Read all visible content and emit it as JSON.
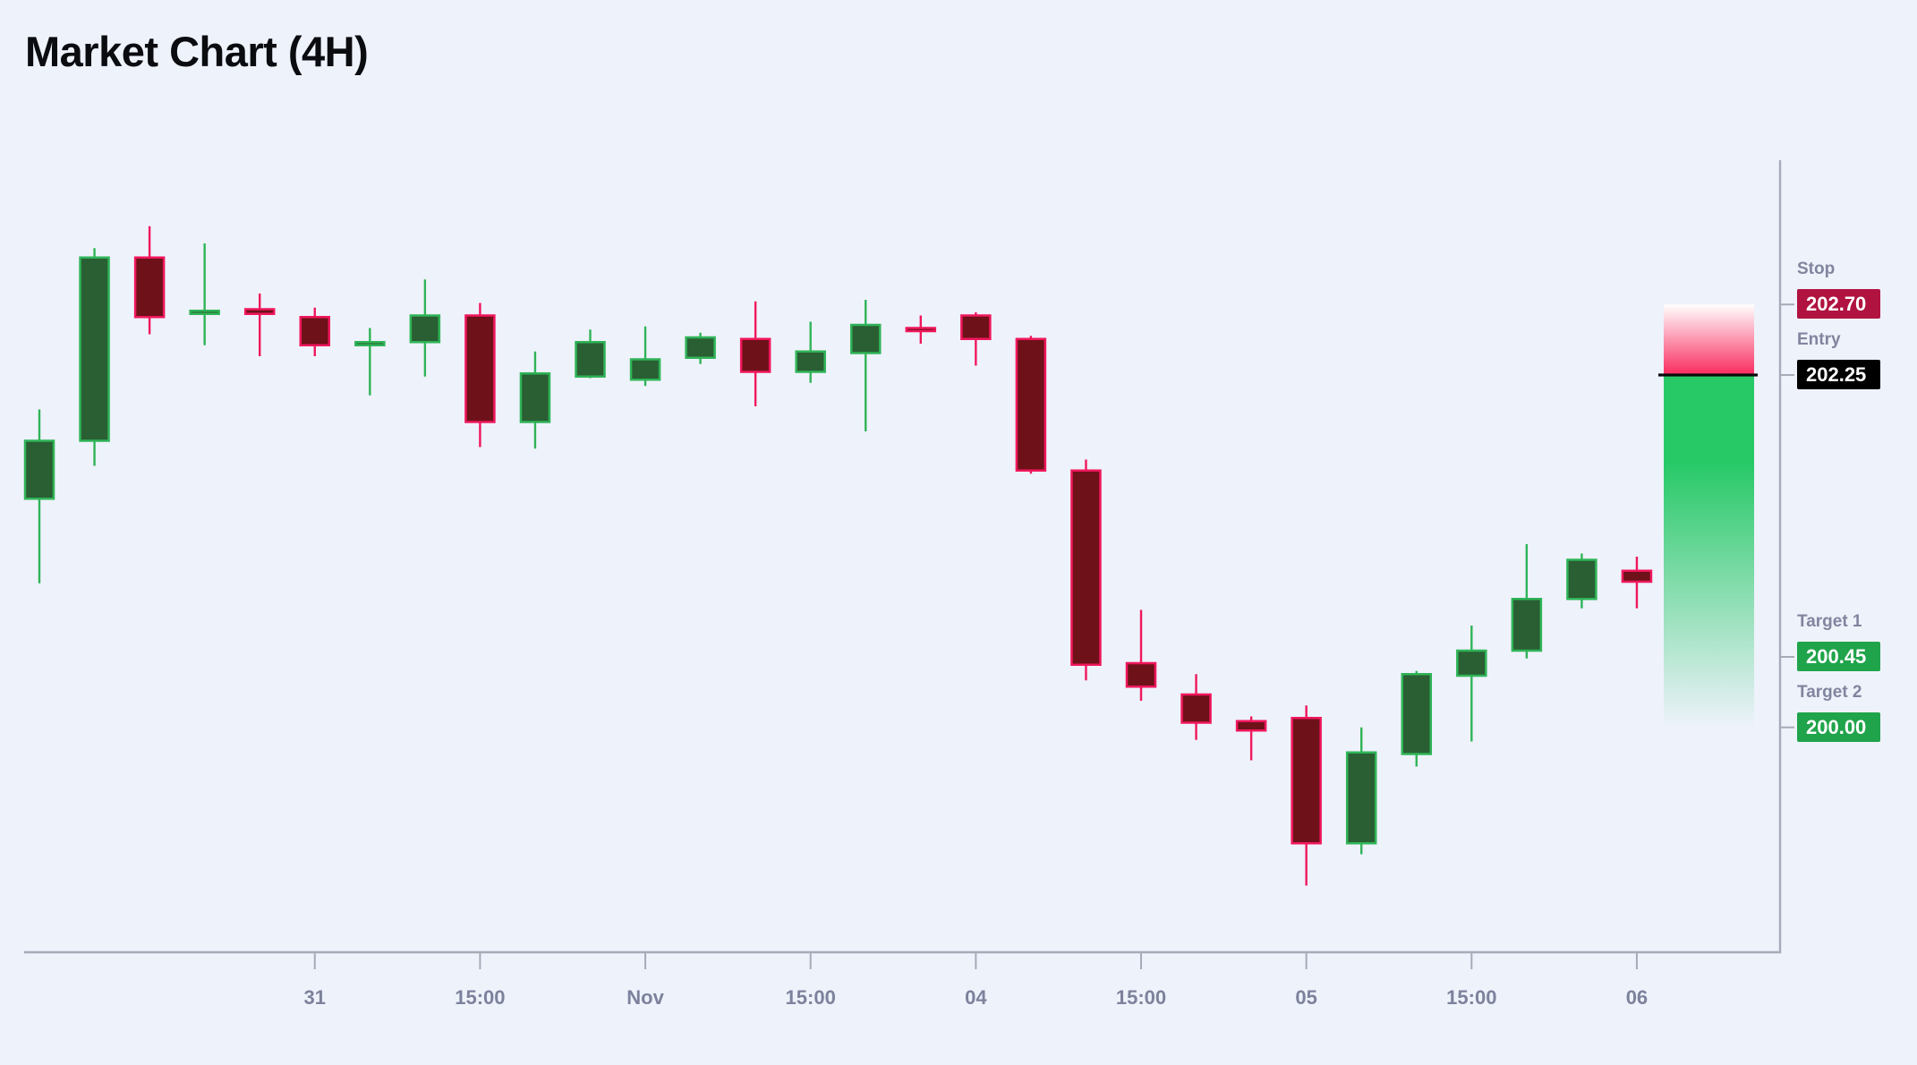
{
  "title": "Market Chart (4H)",
  "colors": {
    "background": "#eef2fb",
    "title_text": "#0b0c10",
    "axis_line": "#a6abb8",
    "tick_label": "#7d829c",
    "annotation_label": "#81859e",
    "bull_fill": "#2a5e33",
    "bull_stroke": "#2fb457",
    "bear_fill": "#6e1119",
    "bear_stroke": "#f0175c",
    "stop_badge_bg": "#b01340",
    "entry_badge_bg": "#000000",
    "target_badge_bg": "#20a44b",
    "badge_text": "#ffffff",
    "zone_stop_color": "#f92b5f",
    "zone_profit_color": "#27c967",
    "entry_line": "#0a0b0e"
  },
  "annotations": {
    "stop": {
      "label": "Stop",
      "value": "202.70",
      "price": 202.7
    },
    "entry": {
      "label": "Entry",
      "value": "202.25",
      "price": 202.25
    },
    "target1": {
      "label": "Target 1",
      "value": "200.45",
      "price": 200.45
    },
    "target2": {
      "label": "Target 2",
      "value": "200.00",
      "price": 200.0
    }
  },
  "chart_data": {
    "type": "candlestick",
    "title": "Market Chart (4H)",
    "timeframe": "4H",
    "legend_position": "none",
    "grid": false,
    "y_axis": {
      "labels_shown": false,
      "visible_range": [
        198.8,
        203.3
      ]
    },
    "x_ticks": [
      {
        "label": "31",
        "candle_index": 5
      },
      {
        "label": "15:00",
        "candle_index": 8
      },
      {
        "label": "Nov",
        "candle_index": 11
      },
      {
        "label": "15:00",
        "candle_index": 14
      },
      {
        "label": "04",
        "candle_index": 17
      },
      {
        "label": "15:00",
        "candle_index": 20
      },
      {
        "label": "05",
        "candle_index": 23
      },
      {
        "label": "15:00",
        "candle_index": 26
      },
      {
        "label": "06",
        "candle_index": 29
      }
    ],
    "candles": [
      {
        "o": 201.46,
        "h": 202.03,
        "l": 200.92,
        "c": 201.83
      },
      {
        "o": 201.83,
        "h": 203.06,
        "l": 201.67,
        "c": 203.0
      },
      {
        "o": 203.0,
        "h": 203.2,
        "l": 202.51,
        "c": 202.62
      },
      {
        "o": 202.64,
        "h": 203.09,
        "l": 202.44,
        "c": 202.66
      },
      {
        "o": 202.67,
        "h": 202.77,
        "l": 202.37,
        "c": 202.64
      },
      {
        "o": 202.62,
        "h": 202.68,
        "l": 202.37,
        "c": 202.44
      },
      {
        "o": 202.44,
        "h": 202.55,
        "l": 202.12,
        "c": 202.46
      },
      {
        "o": 202.46,
        "h": 202.86,
        "l": 202.24,
        "c": 202.63
      },
      {
        "o": 202.63,
        "h": 202.71,
        "l": 201.79,
        "c": 201.95
      },
      {
        "o": 201.95,
        "h": 202.4,
        "l": 201.78,
        "c": 202.26
      },
      {
        "o": 202.24,
        "h": 202.54,
        "l": 202.23,
        "c": 202.46
      },
      {
        "o": 202.22,
        "h": 202.56,
        "l": 202.18,
        "c": 202.35
      },
      {
        "o": 202.36,
        "h": 202.52,
        "l": 202.32,
        "c": 202.49
      },
      {
        "o": 202.48,
        "h": 202.72,
        "l": 202.05,
        "c": 202.27
      },
      {
        "o": 202.27,
        "h": 202.59,
        "l": 202.2,
        "c": 202.4
      },
      {
        "o": 202.39,
        "h": 202.73,
        "l": 201.89,
        "c": 202.57
      },
      {
        "o": 202.55,
        "h": 202.63,
        "l": 202.45,
        "c": 202.53
      },
      {
        "o": 202.63,
        "h": 202.65,
        "l": 202.31,
        "c": 202.48
      },
      {
        "o": 202.48,
        "h": 202.5,
        "l": 201.62,
        "c": 201.64
      },
      {
        "o": 201.64,
        "h": 201.71,
        "l": 200.3,
        "c": 200.4
      },
      {
        "o": 200.41,
        "h": 200.75,
        "l": 200.17,
        "c": 200.26
      },
      {
        "o": 200.21,
        "h": 200.34,
        "l": 199.92,
        "c": 200.03
      },
      {
        "o": 200.04,
        "h": 200.07,
        "l": 199.79,
        "c": 199.98
      },
      {
        "o": 200.06,
        "h": 200.14,
        "l": 198.99,
        "c": 199.26
      },
      {
        "o": 199.26,
        "h": 200.0,
        "l": 199.19,
        "c": 199.84
      },
      {
        "o": 199.83,
        "h": 200.36,
        "l": 199.75,
        "c": 200.34
      },
      {
        "o": 200.33,
        "h": 200.65,
        "l": 199.91,
        "c": 200.49
      },
      {
        "o": 200.49,
        "h": 201.17,
        "l": 200.44,
        "c": 200.82
      },
      {
        "o": 200.82,
        "h": 201.11,
        "l": 200.76,
        "c": 201.07
      },
      {
        "o": 201.0,
        "h": 201.09,
        "l": 200.76,
        "c": 200.93
      }
    ]
  }
}
